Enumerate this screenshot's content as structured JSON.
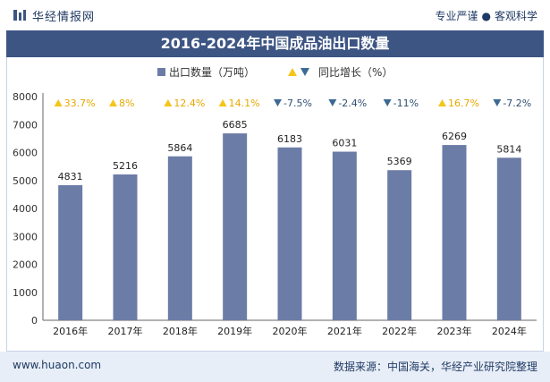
{
  "header": {
    "brand": "华经情报网",
    "slogan_left": "专业严谨",
    "slogan_right": "客观科学"
  },
  "footer": {
    "url": "www.huaon.com",
    "source": "数据来源：中国海关，华经产业研究院整理"
  },
  "colors": {
    "bar": "#6b7ca6",
    "up_triangle": "#f5c518",
    "down_triangle": "#3d6a94",
    "up_text": "#e8a800",
    "down_text": "#2f4f74",
    "title_bg": "#3d5583"
  },
  "chart_data": {
    "type": "bar",
    "title": "2016-2024年中国成品油出口数量",
    "categories": [
      "2016年",
      "2017年",
      "2018年",
      "2019年",
      "2020年",
      "2021年",
      "2022年",
      "2023年",
      "2024年"
    ],
    "series": [
      {
        "name": "出口数量（万吨）",
        "values": [
          4831,
          5216,
          5864,
          6685,
          6183,
          6031,
          5369,
          6269,
          5814
        ]
      }
    ],
    "growth": {
      "name": "同比增长（%）",
      "labels": [
        "33.7%",
        "8%",
        "12.4%",
        "14.1%",
        "-7.5%",
        "-2.4%",
        "-11%",
        "16.7%",
        "-7.2%"
      ],
      "direction": [
        "up",
        "up",
        "up",
        "up",
        "down",
        "down",
        "down",
        "up",
        "down"
      ]
    },
    "ylim": [
      0,
      8000
    ],
    "yticks": [
      "0",
      "1000",
      "2000",
      "3000",
      "4000",
      "5000",
      "6000",
      "7000",
      "8000"
    ],
    "legend_position": "top-center",
    "grid": false
  }
}
